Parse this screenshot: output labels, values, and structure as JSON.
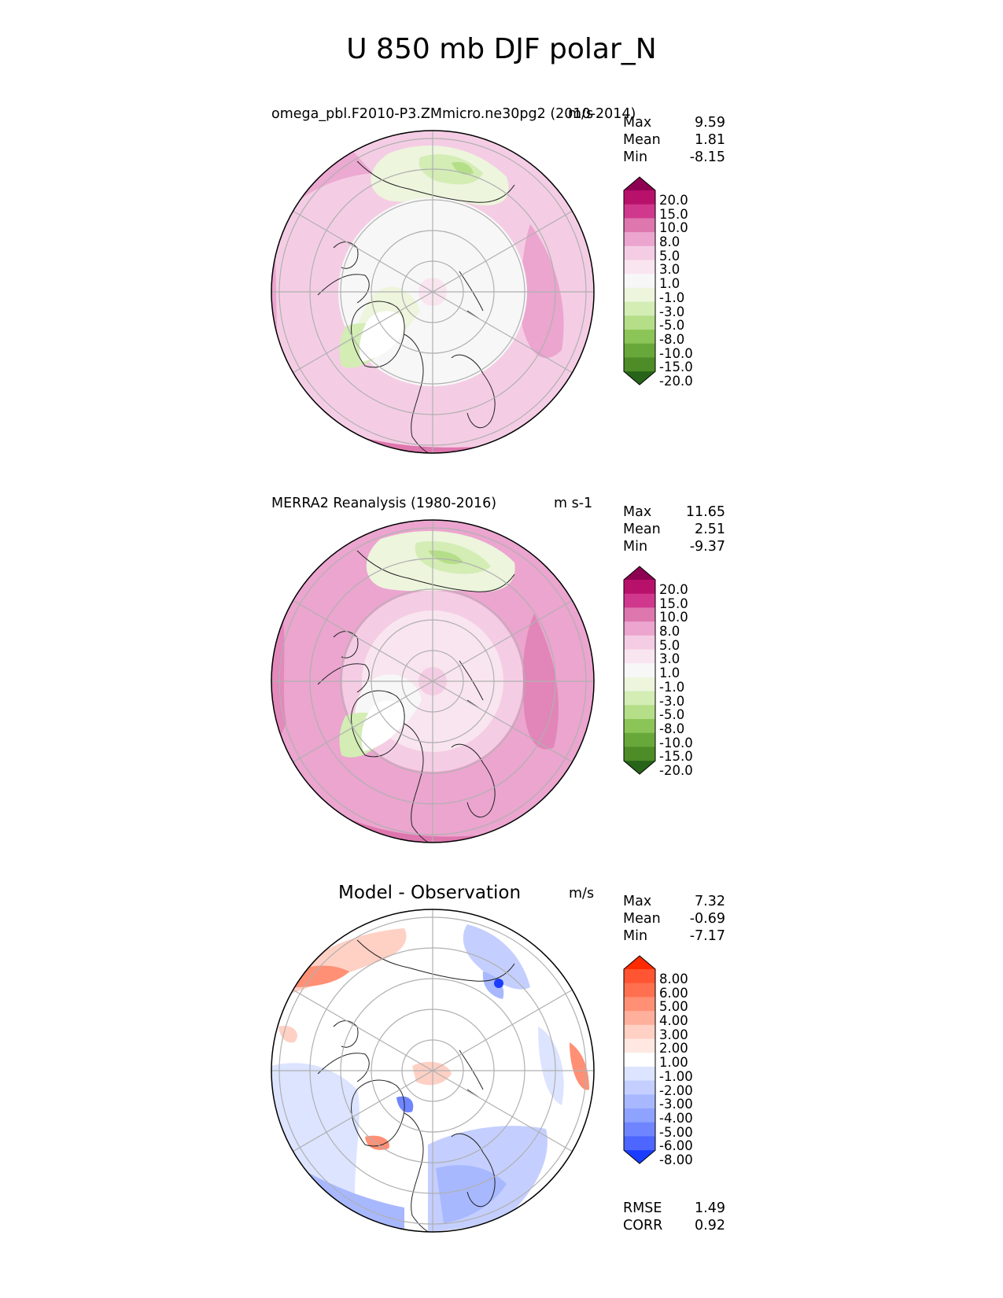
{
  "figure_title": "U 850 mb DJF polar_N",
  "panels": [
    {
      "left_title": "omega_pbl.F2010-P3.ZMmicro.ne30pg2 (2010-2014)",
      "right_title": "m/s",
      "stats": [
        {
          "k": "Max",
          "v": "9.59"
        },
        {
          "k": "Mean",
          "v": "1.81"
        },
        {
          "k": "Min",
          "v": "-8.15"
        }
      ]
    },
    {
      "left_title": "MERRA2 Reanalysis (1980-2016)",
      "right_title": "m s-1",
      "stats": [
        {
          "k": "Max",
          "v": "11.65"
        },
        {
          "k": "Mean",
          "v": "2.51"
        },
        {
          "k": "Min",
          "v": "-9.37"
        }
      ]
    },
    {
      "center_title": "Model - Observation",
      "right_title": "m/s",
      "stats": [
        {
          "k": "Max",
          "v": "7.32"
        },
        {
          "k": "Mean",
          "v": "-0.69"
        },
        {
          "k": "Min",
          "v": "-7.17"
        }
      ],
      "bottom_stats": [
        {
          "k": "RMSE",
          "v": "1.49"
        },
        {
          "k": "CORR",
          "v": "0.92"
        }
      ]
    }
  ],
  "colorbar_field": {
    "labels": [
      "20.0",
      "15.0",
      "10.0",
      "8.0",
      "5.0",
      "3.0",
      "1.0",
      "-1.0",
      "-3.0",
      "-5.0",
      "-8.0",
      "-10.0",
      "-15.0",
      "-20.0"
    ],
    "colors": [
      "#8e0152",
      "#b8116b",
      "#d0388e",
      "#de77ae",
      "#eba5cf",
      "#f4cde4",
      "#f9e5ef",
      "#f7f7f7",
      "#edf5dd",
      "#d3edb5",
      "#b5de89",
      "#8cc557",
      "#68a83a",
      "#4d8c26",
      "#276419"
    ]
  },
  "colorbar_diff": {
    "labels": [
      "8.00",
      "6.00",
      "5.00",
      "4.00",
      "3.00",
      "2.00",
      "1.00",
      "-1.00",
      "-2.00",
      "-3.00",
      "-4.00",
      "-5.00",
      "-6.00",
      "-8.00"
    ],
    "colors": [
      "#ff2a00",
      "#ff5533",
      "#ff7050",
      "#ff9075",
      "#ffb09c",
      "#ffd0c4",
      "#ffe8e2",
      "#ffffff",
      "#dce4ff",
      "#c4cfff",
      "#a8b8ff",
      "#8ea2ff",
      "#6f85ff",
      "#4d66ff",
      "#1a3cff"
    ]
  },
  "chart_data": [
    {
      "type": "heatmap",
      "title": "omega_pbl.F2010-P3.ZMmicro.ne30pg2 (2010-2014)",
      "units": "m/s",
      "projection": "north polar stereographic",
      "max": 9.59,
      "mean": 1.81,
      "min": -8.15
    },
    {
      "type": "heatmap",
      "title": "MERRA2 Reanalysis (1980-2016)",
      "units": "m s-1",
      "projection": "north polar stereographic",
      "max": 11.65,
      "mean": 2.51,
      "min": -9.37
    },
    {
      "type": "heatmap",
      "title": "Model - Observation",
      "units": "m/s",
      "projection": "north polar stereographic",
      "max": 7.32,
      "mean": -0.69,
      "min": -7.17,
      "rmse": 1.49,
      "corr": 0.92
    }
  ]
}
